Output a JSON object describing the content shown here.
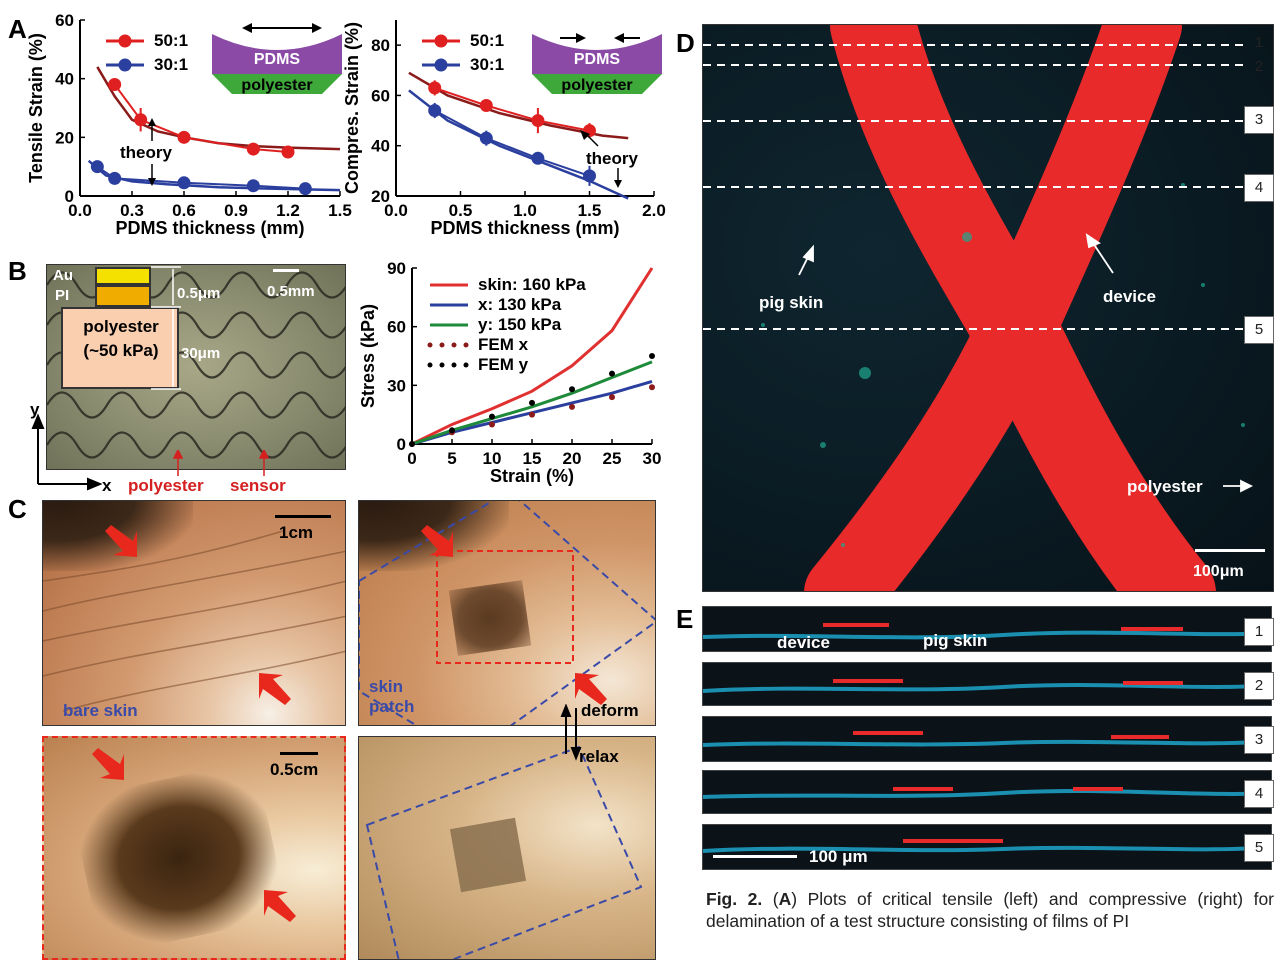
{
  "panels": {
    "a": "A",
    "b": "B",
    "c": "C",
    "d": "D",
    "e": "E"
  },
  "panel_a_left": {
    "chart_data": {
      "type": "line",
      "ylabel": "Tensile Strain (%)",
      "xlabel": "PDMS thickness (mm)",
      "xlim": [
        0.0,
        1.5
      ],
      "ylim": [
        0,
        60
      ],
      "xticks": [
        "0.0",
        "0.3",
        "0.6",
        "0.9",
        "1.2",
        "1.5"
      ],
      "yticks": [
        "0",
        "20",
        "40",
        "60"
      ],
      "series": [
        {
          "name": "50:1",
          "color": "#e02020",
          "x": [
            0.2,
            0.35,
            0.6,
            1.0,
            1.2
          ],
          "y": [
            38,
            26,
            20,
            16,
            15
          ],
          "err": [
            2,
            4,
            1,
            1,
            1
          ]
        },
        {
          "name": "30:1",
          "color": "#2b3f9e",
          "x": [
            0.1,
            0.2,
            0.6,
            1.0,
            1.3
          ],
          "y": [
            10,
            6,
            4.5,
            3.5,
            2.5
          ],
          "err": [
            1,
            1,
            0.5,
            0.5,
            0.5
          ]
        }
      ],
      "theory": [
        {
          "color": "#8b1a1a",
          "x": [
            0.1,
            0.2,
            0.3,
            0.45,
            0.6,
            0.8,
            1.0,
            1.2,
            1.5
          ],
          "y": [
            44,
            34,
            26,
            22,
            20,
            18,
            17,
            16.5,
            16
          ]
        },
        {
          "color": "#2b3f9e",
          "x": [
            0.05,
            0.15,
            0.3,
            0.5,
            0.8,
            1.1,
            1.5
          ],
          "y": [
            12,
            7,
            5,
            4,
            3,
            2.5,
            2
          ]
        }
      ],
      "annotation": "theory",
      "inset": {
        "top": "PDMS",
        "bottom": "polyester"
      }
    }
  },
  "panel_a_right": {
    "chart_data": {
      "type": "line",
      "ylabel": "Compres. Strain (%)",
      "xlabel": "PDMS thickness (mm)",
      "xlim": [
        0.0,
        2.0
      ],
      "ylim": [
        20,
        90
      ],
      "xticks": [
        "0.0",
        "0.5",
        "1.0",
        "1.5",
        "2.0"
      ],
      "yticks": [
        "20",
        "40",
        "60",
        "80"
      ],
      "series": [
        {
          "name": "50:1",
          "color": "#e02020",
          "x": [
            0.3,
            0.7,
            1.1,
            1.5
          ],
          "y": [
            63,
            56,
            50,
            46
          ],
          "err": [
            3,
            2,
            5,
            3
          ]
        },
        {
          "name": "30:1",
          "color": "#2b3f9e",
          "x": [
            0.3,
            0.7,
            1.1,
            1.5
          ],
          "y": [
            54,
            43,
            35,
            28
          ],
          "err": [
            3,
            3,
            2,
            4
          ]
        }
      ],
      "theory": [
        {
          "color": "#8b1a1a",
          "x": [
            0.1,
            0.4,
            0.8,
            1.2,
            1.6,
            1.8
          ],
          "y": [
            69,
            60,
            53,
            48,
            44,
            43
          ]
        },
        {
          "color": "#2b3f9e",
          "x": [
            0.1,
            0.4,
            0.8,
            1.2,
            1.5,
            1.8
          ],
          "y": [
            62,
            50,
            40,
            32,
            26,
            19
          ]
        }
      ],
      "annotation": "theory",
      "inset": {
        "top": "PDMS",
        "bottom": "polyester"
      }
    }
  },
  "panel_b_image": {
    "layers": {
      "au": "Au",
      "pi": "PI",
      "polyester": "polyester",
      "modulus": "(~50 kPa)"
    },
    "dims": {
      "thin": "0.5μm",
      "thick": "30μm"
    },
    "scale": "0.5mm",
    "axes": {
      "y": "y",
      "x": "x"
    },
    "labels": {
      "polyester": "polyester",
      "sensor": "sensor"
    }
  },
  "panel_b_chart": {
    "chart_data": {
      "type": "line",
      "ylabel": "Stress (kPa)",
      "xlabel": "Strain (%)",
      "xlim": [
        0,
        30
      ],
      "ylim": [
        0,
        90
      ],
      "xticks": [
        "0",
        "5",
        "10",
        "15",
        "20",
        "25",
        "30"
      ],
      "yticks": [
        "0",
        "30",
        "60",
        "90"
      ],
      "series": [
        {
          "name": "skin: 160 kPa",
          "color": "#e03030",
          "style": "line",
          "x": [
            0,
            5,
            10,
            15,
            20,
            25,
            30
          ],
          "y": [
            0,
            10,
            18,
            27,
            40,
            58,
            90
          ]
        },
        {
          "name": "x: 130 kPa",
          "color": "#2b3f9e",
          "style": "line",
          "x": [
            0,
            5,
            10,
            15,
            20,
            25,
            30
          ],
          "y": [
            0,
            6,
            11,
            16,
            21,
            26,
            32
          ]
        },
        {
          "name": "y: 150 kPa",
          "color": "#1e8a3a",
          "style": "line",
          "x": [
            0,
            5,
            10,
            15,
            20,
            25,
            30
          ],
          "y": [
            0,
            7,
            13,
            19,
            26,
            34,
            42
          ]
        },
        {
          "name": "FEM x",
          "color": "#8b1a1a",
          "style": "dots",
          "x": [
            0,
            5,
            10,
            15,
            20,
            25,
            30
          ],
          "y": [
            0,
            6,
            10,
            15,
            19,
            24,
            29
          ]
        },
        {
          "name": "FEM y",
          "color": "#000000",
          "style": "dots",
          "x": [
            0,
            5,
            10,
            15,
            20,
            25,
            30
          ],
          "y": [
            0,
            7,
            14,
            21,
            28,
            36,
            45
          ]
        }
      ]
    }
  },
  "panel_c": {
    "scale_1": "1cm",
    "scale_2": "0.5cm",
    "bare": "bare skin",
    "patch": "skin patch",
    "deform": "deform",
    "relax": "relax"
  },
  "panel_d": {
    "lines": [
      "1",
      "2",
      "3",
      "4",
      "5"
    ],
    "pig_skin": "pig skin",
    "device": "device",
    "polyester": "polyester",
    "scale": "100μm"
  },
  "panel_e": {
    "rows": [
      "1",
      "2",
      "3",
      "4",
      "5"
    ],
    "device": "device",
    "pig_skin": "pig skin",
    "scale": "100 μm"
  },
  "caption": {
    "fig": "Fig. 2.",
    "panel": "A",
    "line1": "Plots of critical tensile (left) and compressive (right)",
    "line2": "for delamination of a test structure consisting of films of PI"
  }
}
